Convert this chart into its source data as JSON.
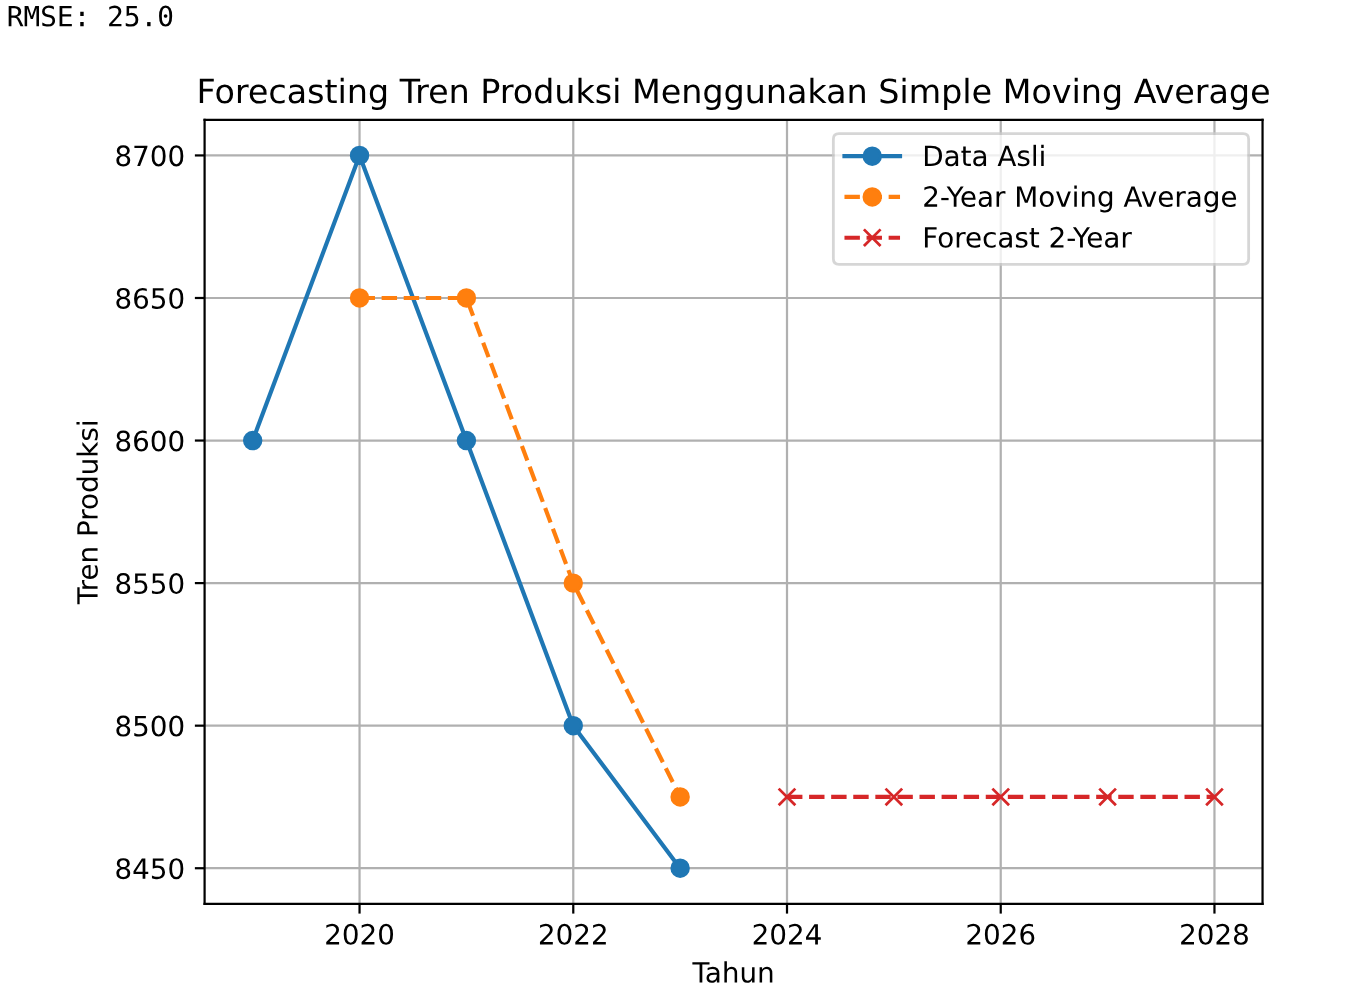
{
  "chart_data": {
    "type": "line",
    "title": "Forecasting Tren Produksi Menggunakan Simple Moving Average",
    "xlabel": "Tahun",
    "ylabel": "Tren Produksi",
    "annotations": [
      "RMSE: 25.0"
    ],
    "series": [
      {
        "name": "Data Asli",
        "color": "#1f77b4",
        "x": [
          2019,
          2020,
          2021,
          2022,
          2023
        ],
        "values": [
          8600,
          8700,
          8600,
          8500,
          8450
        ],
        "marker": "circle",
        "line_style": "solid"
      },
      {
        "name": "2-Year Moving Average",
        "color": "#ff7f0e",
        "x": [
          2020,
          2021,
          2022,
          2023
        ],
        "values": [
          8650,
          8650,
          8550,
          8475
        ],
        "marker": "circle",
        "line_style": "dashed"
      },
      {
        "name": "Forecast 2-Year",
        "color": "#d62728",
        "x": [
          2024,
          2025,
          2026,
          2027,
          2028
        ],
        "values": [
          8475,
          8475,
          8475,
          8475,
          8475
        ],
        "marker": "cross",
        "line_style": "dashed"
      }
    ],
    "xlim": [
      2018.55,
      2028.45
    ],
    "xticks": [
      2020,
      2022,
      2024,
      2026,
      2028
    ],
    "ylim": [
      8437.5,
      8712.5
    ],
    "yticks": [
      8450,
      8500,
      8550,
      8600,
      8650,
      8700
    ],
    "grid": true,
    "legend": "top right"
  }
}
